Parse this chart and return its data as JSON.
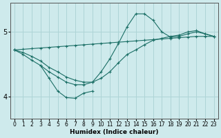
{
  "xlabel": "Humidex (Indice chaleur)",
  "bg_color": "#ceeaec",
  "grid_color": "#aed4d6",
  "line_color": "#1a6e65",
  "xlim": [
    -0.5,
    23.5
  ],
  "ylim": [
    3.65,
    5.45
  ],
  "yticks": [
    4,
    5
  ],
  "xticks": [
    0,
    1,
    2,
    3,
    4,
    5,
    6,
    7,
    8,
    9,
    10,
    11,
    12,
    13,
    14,
    15,
    16,
    17,
    18,
    19,
    20,
    21,
    22,
    23
  ],
  "lines": [
    {
      "x": [
        0,
        1,
        2,
        3,
        4,
        5,
        6,
        7,
        8,
        9,
        10,
        11,
        12,
        13,
        14,
        15,
        16,
        17,
        18,
        19,
        20,
        21,
        22,
        23
      ],
      "y": [
        4.72,
        4.73,
        4.74,
        4.75,
        4.76,
        4.77,
        4.78,
        4.79,
        4.8,
        4.81,
        4.82,
        4.83,
        4.84,
        4.85,
        4.86,
        4.87,
        4.88,
        4.89,
        4.9,
        4.91,
        4.92,
        4.93,
        4.93,
        4.93
      ]
    },
    {
      "x": [
        0,
        1,
        2,
        3,
        4,
        5,
        6,
        7,
        8,
        9,
        10,
        11,
        12,
        13,
        14,
        15,
        16,
        17,
        18,
        19,
        20,
        21,
        22,
        23
      ],
      "y": [
        4.72,
        4.68,
        4.62,
        4.55,
        4.45,
        4.38,
        4.3,
        4.25,
        4.22,
        4.22,
        4.28,
        4.38,
        4.52,
        4.65,
        4.72,
        4.8,
        4.87,
        4.9,
        4.93,
        4.95,
        5.0,
        5.02,
        4.97,
        4.93
      ]
    },
    {
      "x": [
        0,
        1,
        2,
        3,
        4,
        5,
        6,
        7,
        8,
        9,
        10,
        11,
        12,
        13,
        14,
        15,
        16,
        17,
        18,
        19,
        20,
        21,
        22,
        23
      ],
      "y": [
        4.72,
        4.65,
        4.56,
        4.48,
        4.38,
        4.3,
        4.22,
        4.18,
        4.18,
        4.22,
        4.38,
        4.58,
        4.82,
        5.08,
        5.28,
        5.28,
        5.18,
        5.0,
        4.92,
        4.93,
        4.97,
        5.0,
        4.97,
        4.93
      ]
    },
    {
      "x": [
        3,
        4,
        5,
        6,
        7,
        8,
        9
      ],
      "y": [
        4.48,
        4.28,
        4.08,
        3.98,
        3.97,
        4.05,
        4.08
      ]
    }
  ]
}
